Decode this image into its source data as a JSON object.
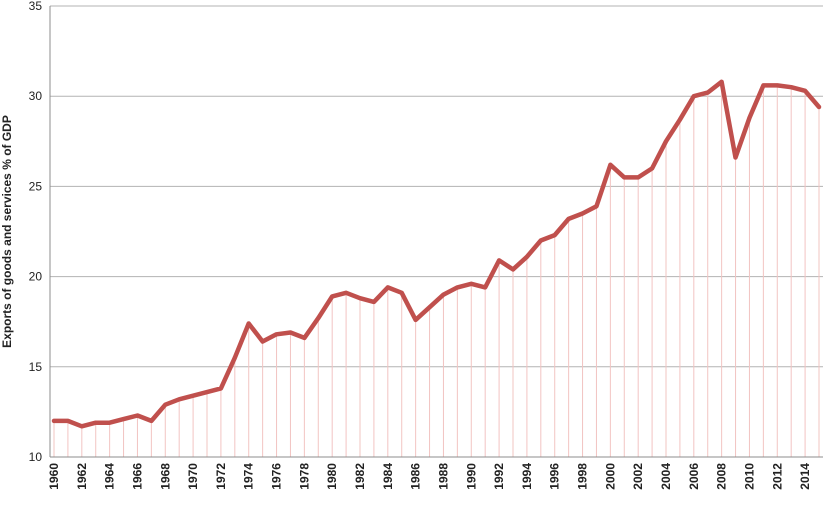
{
  "chart_data": {
    "type": "line",
    "title": "",
    "xlabel": "",
    "ylabel": "Exports of goods and services % of GDP",
    "ylim": [
      10,
      35
    ],
    "y_ticks": [
      "10",
      "15",
      "20",
      "25",
      "30",
      "35"
    ],
    "x_ticks": [
      "1960",
      "1962",
      "1964",
      "1966",
      "1968",
      "1970",
      "1972",
      "1974",
      "1976",
      "1978",
      "1980",
      "1982",
      "1984",
      "1986",
      "1988",
      "1990",
      "1992",
      "1994",
      "1996",
      "1998",
      "2000",
      "2002",
      "2004",
      "2006",
      "2008",
      "2010",
      "2012",
      "2014"
    ],
    "grid": true,
    "drop_lines": true,
    "line_color": "#c0504d",
    "drop_line_color": "#f2c4c2",
    "grid_color": "#b3b3b3",
    "x": [
      1960,
      1961,
      1962,
      1963,
      1964,
      1965,
      1966,
      1967,
      1968,
      1969,
      1970,
      1971,
      1972,
      1973,
      1974,
      1975,
      1976,
      1977,
      1978,
      1979,
      1980,
      1981,
      1982,
      1983,
      1984,
      1985,
      1986,
      1987,
      1988,
      1989,
      1990,
      1991,
      1992,
      1993,
      1994,
      1995,
      1996,
      1997,
      1998,
      1999,
      2000,
      2001,
      2002,
      2003,
      2004,
      2005,
      2006,
      2007,
      2008,
      2009,
      2010,
      2011,
      2012,
      2013,
      2014,
      2015
    ],
    "series": [
      {
        "values": [
          12.0,
          12.0,
          11.7,
          11.9,
          11.9,
          12.1,
          12.3,
          12.0,
          12.9,
          13.2,
          13.4,
          13.6,
          13.8,
          15.5,
          17.4,
          16.4,
          16.8,
          16.9,
          16.6,
          17.7,
          18.9,
          19.1,
          18.8,
          18.6,
          19.4,
          19.1,
          17.6,
          18.3,
          19.0,
          19.4,
          19.6,
          19.4,
          20.9,
          20.4,
          21.1,
          22.0,
          22.3,
          23.2,
          23.5,
          23.9,
          26.2,
          25.5,
          25.5,
          26.0,
          27.5,
          28.7,
          30.0,
          30.2,
          30.8,
          26.6,
          28.8,
          30.6,
          30.6,
          30.5,
          30.3,
          29.4
        ]
      }
    ]
  }
}
